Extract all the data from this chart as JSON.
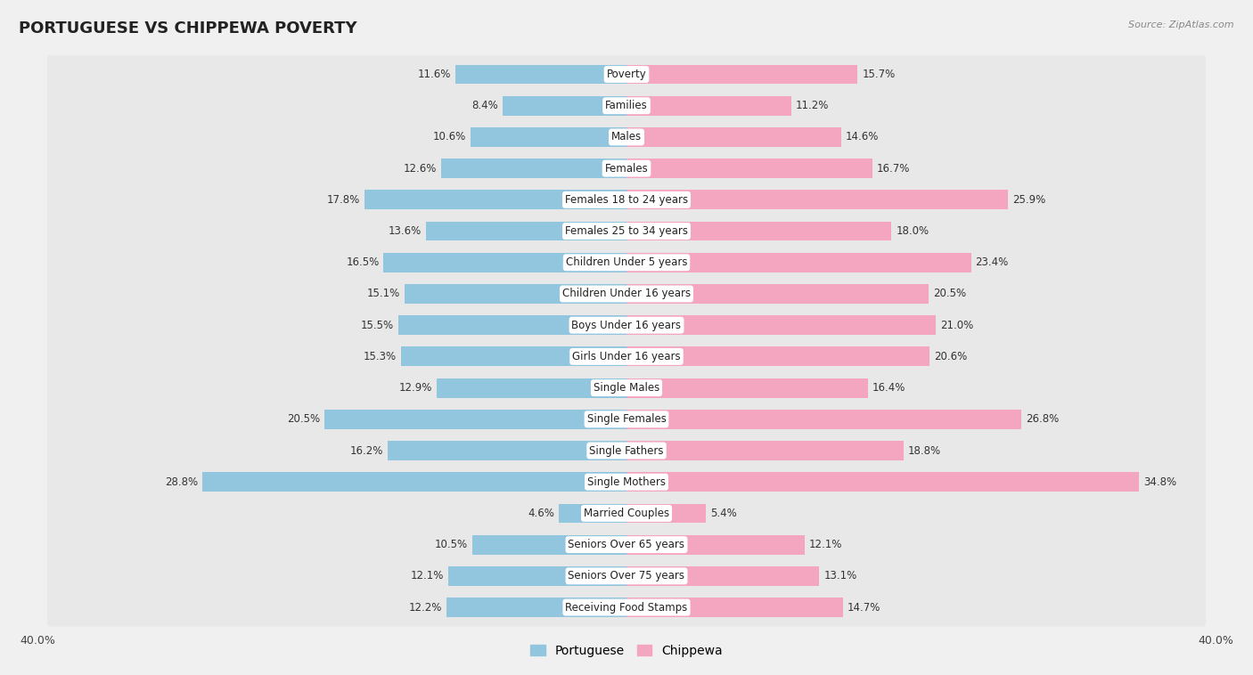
{
  "title": "PORTUGUESE VS CHIPPEWA POVERTY",
  "source": "Source: ZipAtlas.com",
  "categories": [
    "Poverty",
    "Families",
    "Males",
    "Females",
    "Females 18 to 24 years",
    "Females 25 to 34 years",
    "Children Under 5 years",
    "Children Under 16 years",
    "Boys Under 16 years",
    "Girls Under 16 years",
    "Single Males",
    "Single Females",
    "Single Fathers",
    "Single Mothers",
    "Married Couples",
    "Seniors Over 65 years",
    "Seniors Over 75 years",
    "Receiving Food Stamps"
  ],
  "portuguese": [
    11.6,
    8.4,
    10.6,
    12.6,
    17.8,
    13.6,
    16.5,
    15.1,
    15.5,
    15.3,
    12.9,
    20.5,
    16.2,
    28.8,
    4.6,
    10.5,
    12.1,
    12.2
  ],
  "chippewa": [
    15.7,
    11.2,
    14.6,
    16.7,
    25.9,
    18.0,
    23.4,
    20.5,
    21.0,
    20.6,
    16.4,
    26.8,
    18.8,
    34.8,
    5.4,
    12.1,
    13.1,
    14.7
  ],
  "portuguese_color": "#92c5de",
  "chippewa_color": "#f4a6c0",
  "xlim": 40.0,
  "background_color": "#f0f0f0",
  "row_color": "#e8e8e8",
  "bar_height": 0.62,
  "title_fontsize": 13,
  "label_fontsize": 8.5,
  "value_fontsize": 8.5,
  "legend_fontsize": 10,
  "axis_label_fontsize": 9
}
